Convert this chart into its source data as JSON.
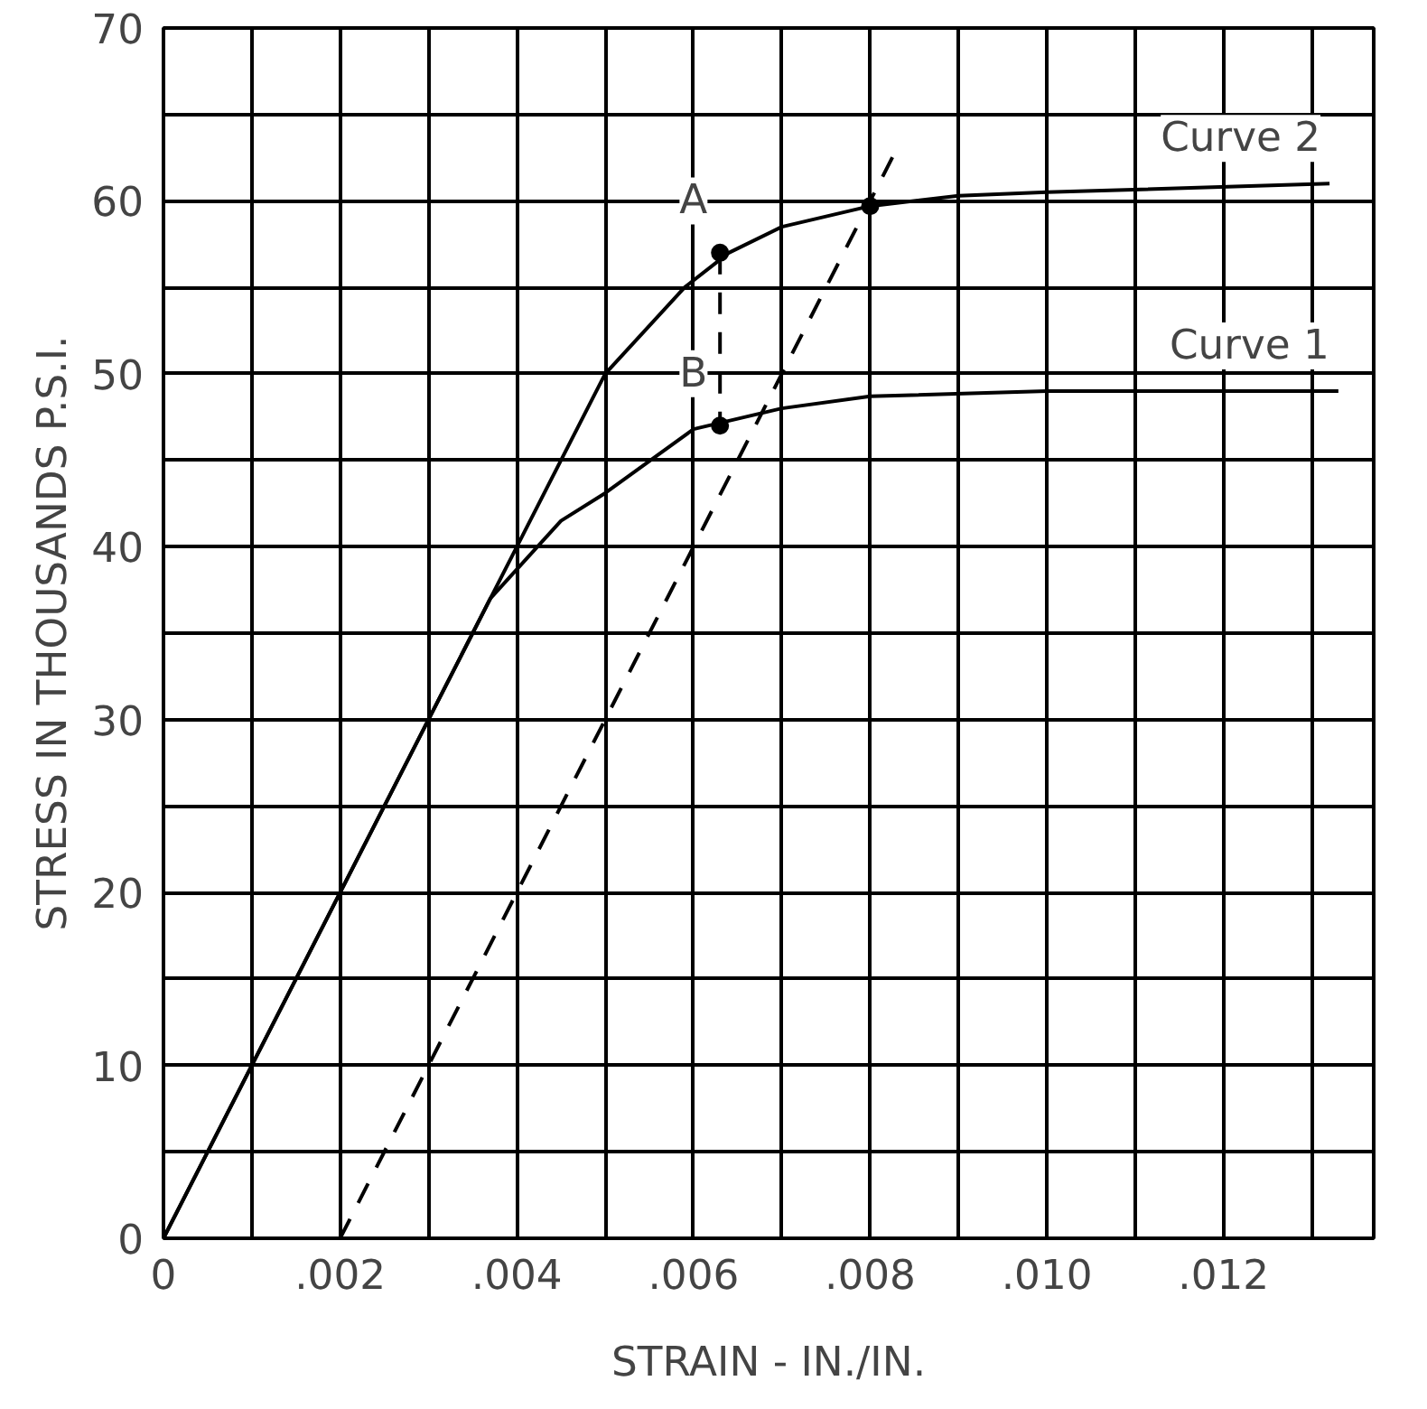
{
  "chart_data": {
    "type": "line",
    "xlabel": "STRAIN - IN./IN.",
    "ylabel": "STRESS IN THOUSANDS P.S.I.",
    "xlim": [
      0,
      0.0137
    ],
    "ylim": [
      0,
      70
    ],
    "xticks": [
      {
        "value": 0,
        "label": "0"
      },
      {
        "value": 0.001,
        "label": null
      },
      {
        "value": 0.002,
        "label": ".002"
      },
      {
        "value": 0.003,
        "label": null
      },
      {
        "value": 0.004,
        "label": ".004"
      },
      {
        "value": 0.005,
        "label": null
      },
      {
        "value": 0.006,
        "label": ".006"
      },
      {
        "value": 0.007,
        "label": null
      },
      {
        "value": 0.008,
        "label": ".008"
      },
      {
        "value": 0.009,
        "label": null
      },
      {
        "value": 0.01,
        "label": ".010"
      },
      {
        "value": 0.011,
        "label": null
      },
      {
        "value": 0.012,
        "label": ".012"
      },
      {
        "value": 0.013,
        "label": null
      }
    ],
    "yticks": [
      0,
      {
        "value": 5,
        "label": null
      },
      10,
      {
        "value": 15,
        "label": null
      },
      20,
      {
        "value": 25,
        "label": null
      },
      30,
      {
        "value": 35,
        "label": null
      },
      40,
      {
        "value": 45,
        "label": null
      },
      50,
      {
        "value": 55,
        "label": null
      },
      60,
      {
        "value": 65,
        "label": null
      },
      70
    ],
    "grid": true,
    "series": [
      {
        "name": "Curve 2",
        "color": "#000000",
        "line_style": "solid",
        "marker": "none",
        "x": [
          0,
          0.004,
          0.005,
          0.0059,
          0.0064,
          0.007,
          0.008,
          0.009,
          0.01,
          0.0132
        ],
        "values": [
          0,
          40,
          50,
          55,
          57,
          58.5,
          59.7,
          60.3,
          60.5,
          61
        ]
      },
      {
        "name": "Curve 1",
        "color": "#000000",
        "line_style": "solid",
        "marker": "none",
        "x": [
          0,
          0.0037,
          0.0045,
          0.005,
          0.006,
          0.007,
          0.008,
          0.01,
          0.0133
        ],
        "values": [
          0,
          37,
          41.5,
          43.1,
          46.8,
          48,
          48.7,
          49,
          49
        ]
      },
      {
        "color": "#000000",
        "line_style": "dashed",
        "marker": "none",
        "x": [
          0.002,
          0.0083
        ],
        "values": [
          0,
          63
        ]
      },
      {
        "color": "#000000",
        "line_style": "dashed",
        "marker": "none",
        "x": [
          0.0063,
          0.0063
        ],
        "values": [
          57,
          47
        ]
      },
      {
        "type": "scatter",
        "color": "#000000",
        "marker": "circle",
        "x": [
          0.0063,
          0.0063,
          0.008
        ],
        "values": [
          57,
          47,
          59.7
        ]
      }
    ],
    "annotations": [
      {
        "text": "A",
        "x": 0.006,
        "y": 60
      },
      {
        "text": "B",
        "x": 0.006,
        "y": 50
      }
    ]
  }
}
